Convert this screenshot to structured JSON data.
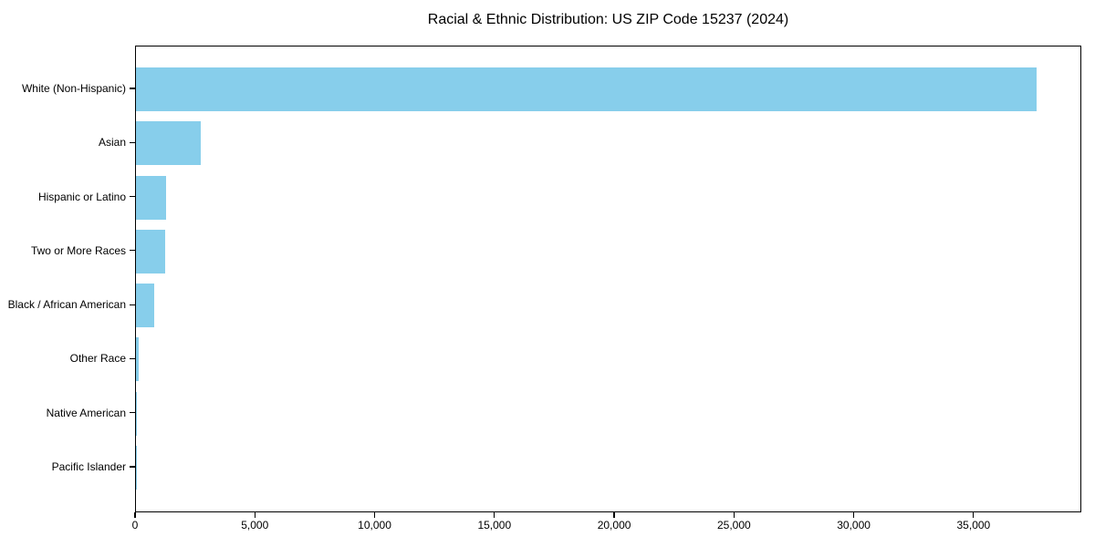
{
  "chart_data": {
    "type": "bar",
    "orientation": "horizontal",
    "title": "Racial & Ethnic Distribution: US ZIP Code 15237 (2024)",
    "categories": [
      "White (Non-Hispanic)",
      "Asian",
      "Hispanic or Latino",
      "Two or More Races",
      "Black / African American",
      "Other Race",
      "Native American",
      "Pacific Islander"
    ],
    "values": [
      37600,
      2700,
      1250,
      1220,
      760,
      110,
      40,
      15
    ],
    "xlabel": "",
    "ylabel": "",
    "xlim": [
      0,
      39500
    ],
    "xticks": [
      0,
      5000,
      10000,
      15000,
      20000,
      25000,
      30000,
      35000
    ],
    "xtick_labels": [
      "0",
      "5,000",
      "10,000",
      "15,000",
      "20,000",
      "25,000",
      "30,000",
      "35,000"
    ],
    "bar_color": "#87CEEB",
    "frame_color": "#000000",
    "background": "#FFFFFF",
    "grid": false,
    "legend": null
  }
}
